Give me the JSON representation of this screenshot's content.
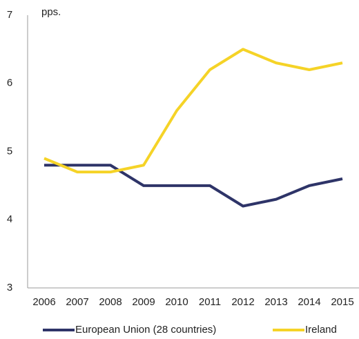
{
  "chart_data": {
    "type": "line",
    "y_label": "pps.",
    "categories": [
      "2006",
      "2007",
      "2008",
      "2009",
      "2010",
      "2011",
      "2012",
      "2013",
      "2014",
      "2015"
    ],
    "series": [
      {
        "name": "European Union (28 countries)",
        "color": "#2e3468",
        "values": [
          4.8,
          4.8,
          4.8,
          4.5,
          4.5,
          4.5,
          4.2,
          4.3,
          4.5,
          4.6
        ]
      },
      {
        "name": "Ireland",
        "color": "#f5d327",
        "values": [
          4.9,
          4.7,
          4.7,
          4.8,
          5.6,
          6.2,
          6.5,
          6.3,
          6.2,
          6.3
        ]
      }
    ],
    "ylim": [
      3,
      7
    ],
    "yticks": [
      3,
      4,
      5,
      6,
      7
    ],
    "grid": false,
    "legend": "bottom"
  }
}
